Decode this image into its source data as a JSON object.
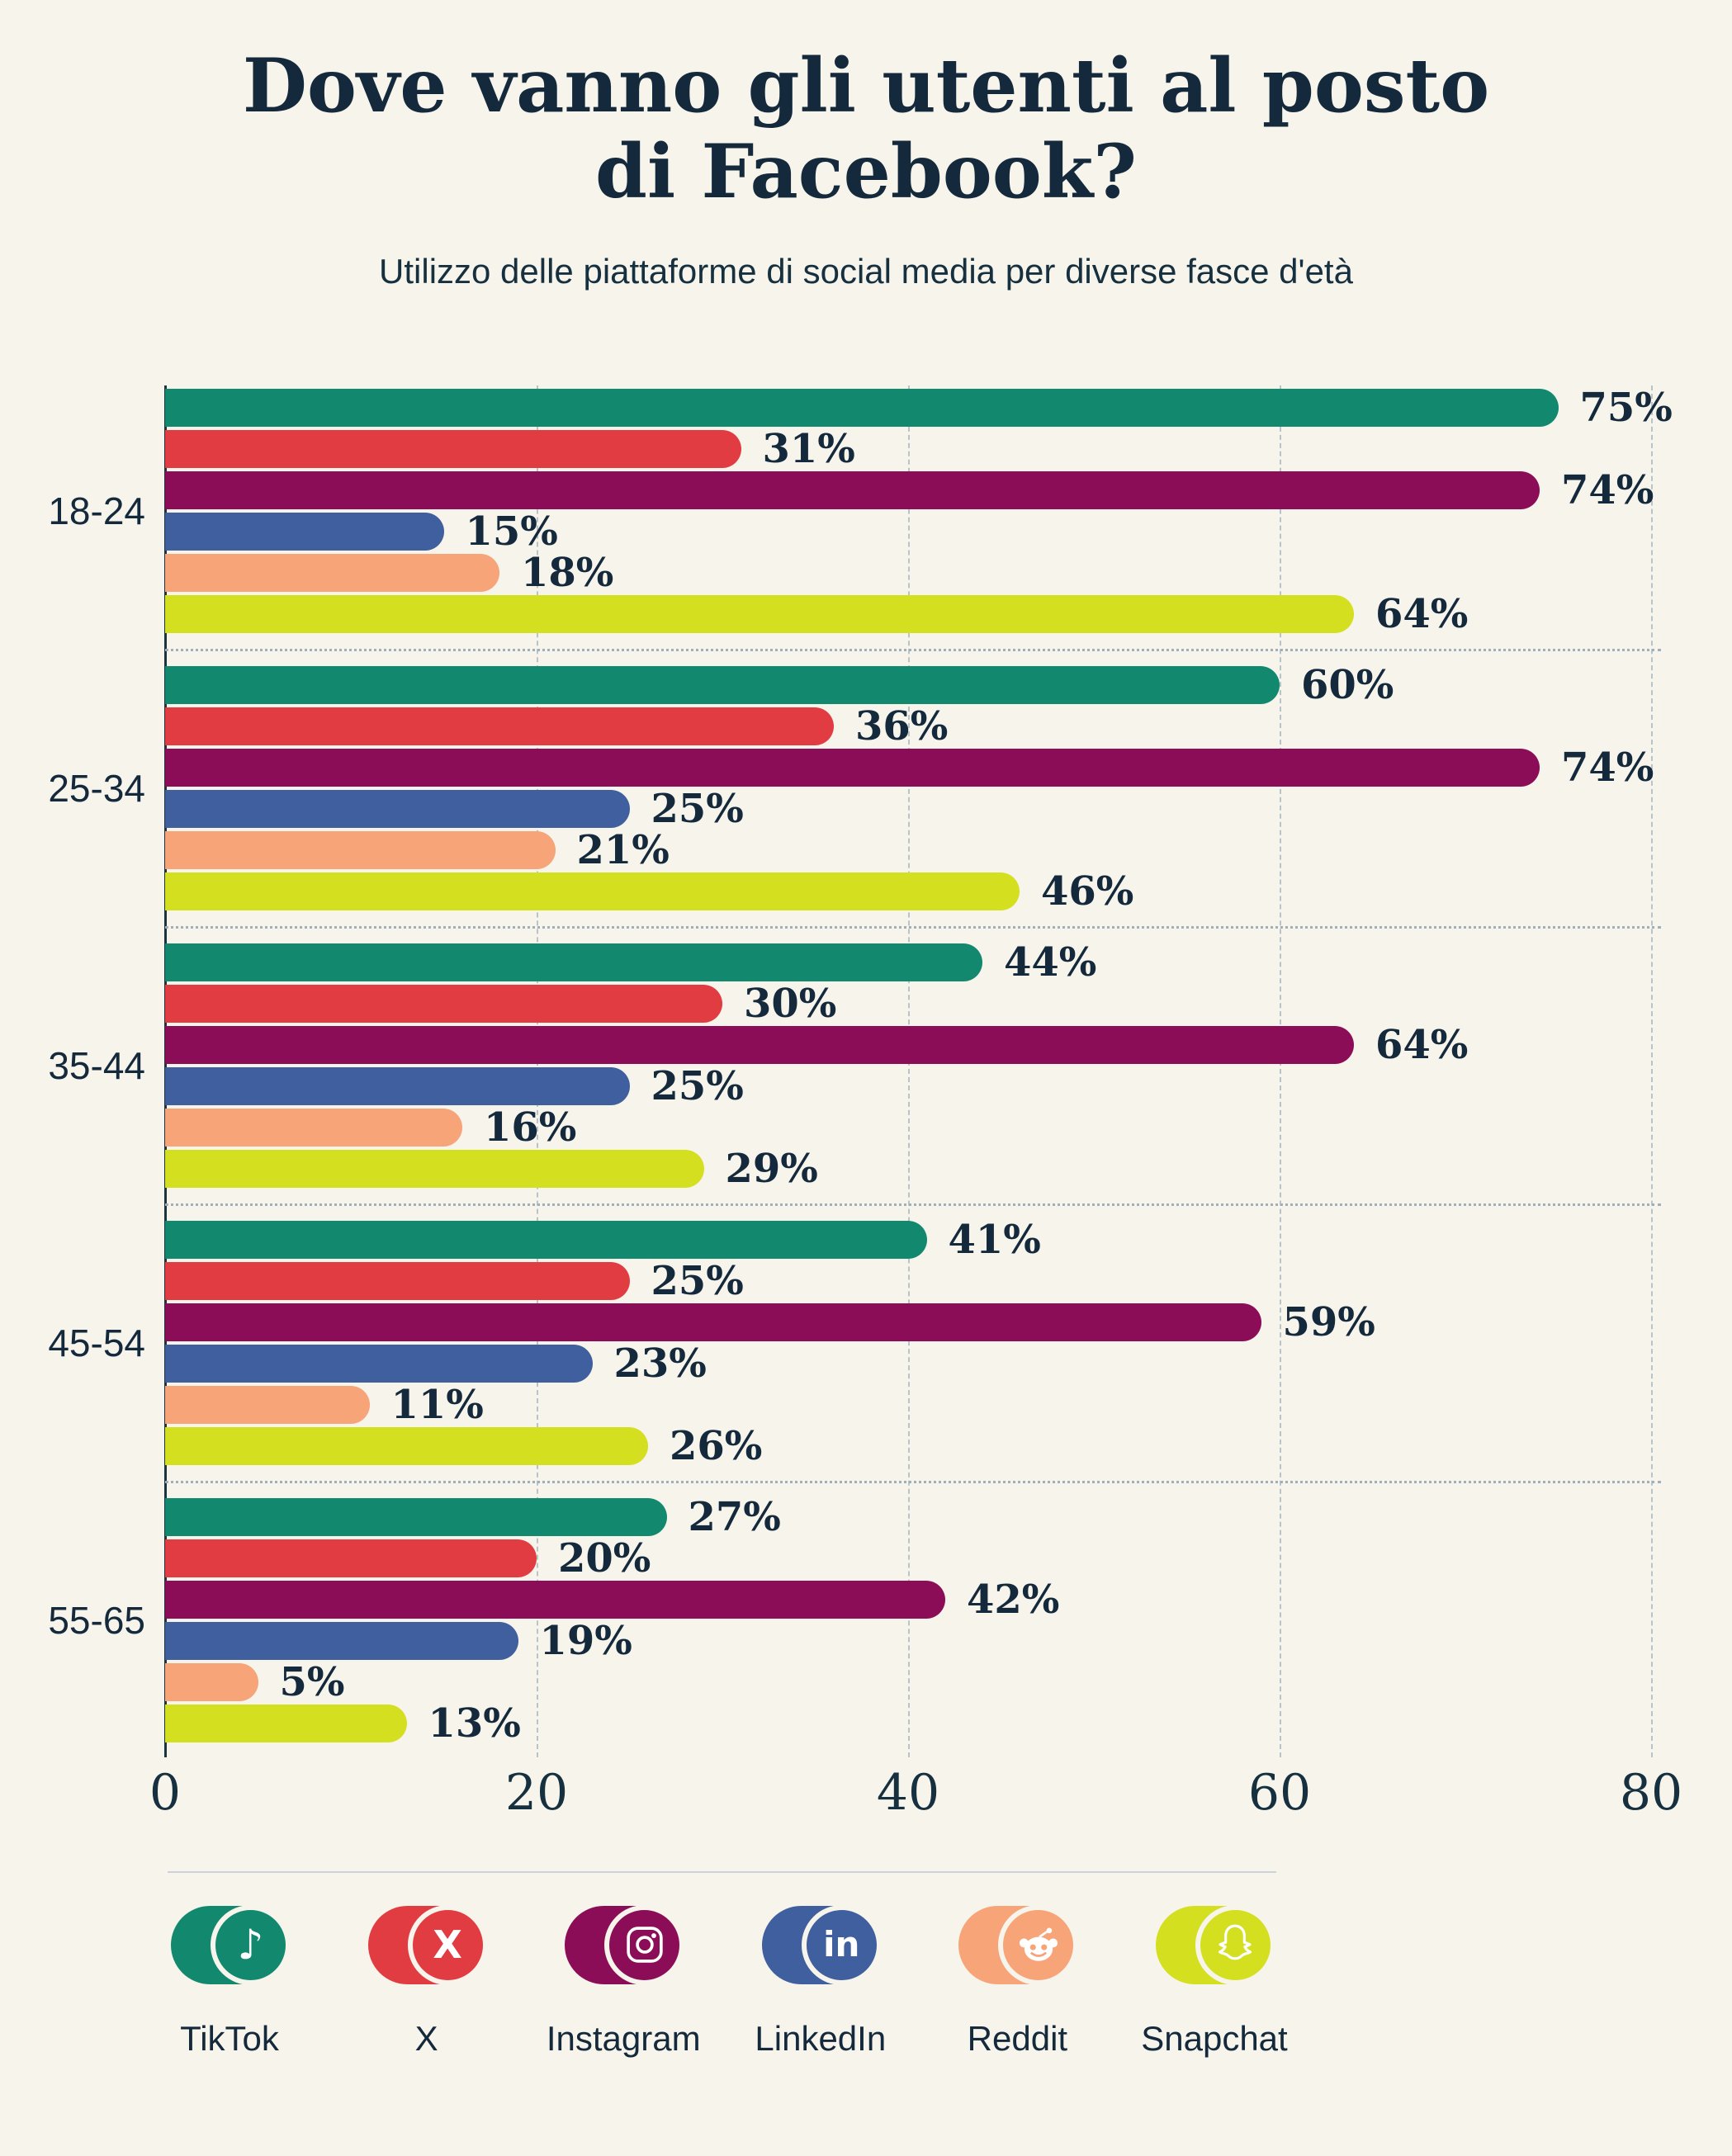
{
  "title": {
    "full": "Dove vanno gli utenti al posto di Facebook?",
    "line1": "Dove vanno gli utenti al posto",
    "line2": "di Facebook?"
  },
  "subtitle": "Utilizzo delle piattaforme di social media per diverse fasce d'età",
  "chart_data": {
    "type": "bar",
    "orientation": "horizontal",
    "title": "Dove vanno gli utenti al posto di Facebook?",
    "subtitle": "Utilizzo delle piattaforme di social media per diverse fasce d'età",
    "unit": "%",
    "categories": [
      "18-24",
      "25-34",
      "35-44",
      "45-54",
      "55-65"
    ],
    "series": [
      {
        "name": "TikTok",
        "color": "#12896E",
        "values": [
          75,
          60,
          44,
          41,
          27
        ]
      },
      {
        "name": "X",
        "color": "#E23C43",
        "values": [
          31,
          36,
          30,
          25,
          20
        ]
      },
      {
        "name": "Instagram",
        "color": "#8C0D57",
        "values": [
          74,
          74,
          64,
          59,
          42
        ]
      },
      {
        "name": "LinkedIn",
        "color": "#3F5F9E",
        "values": [
          15,
          25,
          25,
          23,
          19
        ]
      },
      {
        "name": "Reddit",
        "color": "#F6A478",
        "values": [
          18,
          21,
          16,
          11,
          5
        ]
      },
      {
        "name": "Snapchat",
        "color": "#D4DF20",
        "values": [
          64,
          46,
          29,
          26,
          13
        ]
      }
    ],
    "xlim": [
      0,
      80
    ],
    "x_ticks": [
      "0",
      "20",
      "40",
      "60",
      "80"
    ],
    "grid": "dashed vertical gridlines at ticks, dotted horizontal separators between age groups",
    "value_labels": "right of each bar",
    "legend_position": "bottom"
  },
  "legend": {
    "items": [
      {
        "label": "TikTok",
        "color": "#12896E",
        "icon": "tiktok-icon"
      },
      {
        "label": "X",
        "color": "#E23C43",
        "icon": "x-icon"
      },
      {
        "label": "Instagram",
        "color": "#8C0D57",
        "icon": "instagram-icon"
      },
      {
        "label": "LinkedIn",
        "color": "#3F5F9E",
        "icon": "linkedin-icon"
      },
      {
        "label": "Reddit",
        "color": "#F6A478",
        "icon": "reddit-icon"
      },
      {
        "label": "Snapchat",
        "color": "#D4DF20",
        "icon": "snapchat-icon"
      }
    ]
  },
  "colors": {
    "background": "#F7F4EB",
    "text": "#14293B",
    "gridline": "#B9C3CA",
    "separator": "#9FB0BA",
    "axis_line": "#1B3442",
    "legend_divider": "#CBD2DC"
  }
}
